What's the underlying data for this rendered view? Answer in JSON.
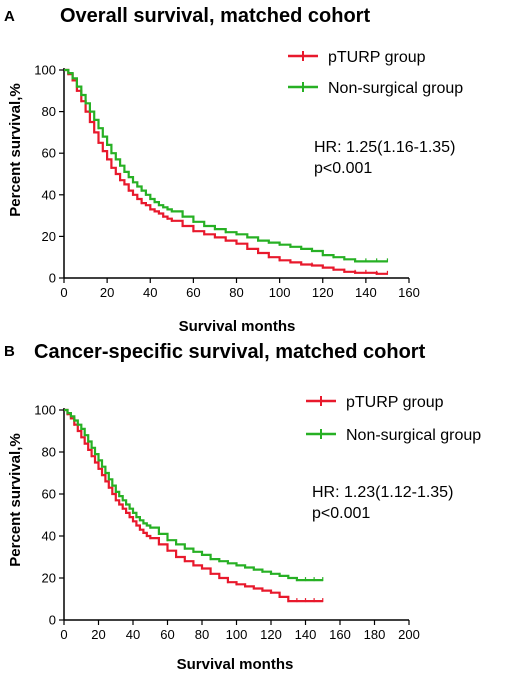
{
  "chart_data": [
    {
      "panel": "A",
      "type": "line",
      "title": "Overall survival, matched cohort",
      "xlabel": "Survival months",
      "ylabel": "Percent survival,%",
      "xlim": [
        0,
        160
      ],
      "ylim": [
        0,
        100
      ],
      "xticks": [
        0,
        20,
        40,
        60,
        80,
        100,
        120,
        140,
        160
      ],
      "yticks": [
        0,
        20,
        40,
        60,
        80,
        100
      ],
      "grid": false,
      "legend_position": "top-right",
      "series": [
        {
          "name": "pTURP group",
          "color": "#e8192c",
          "x": [
            0,
            2,
            4,
            6,
            8,
            10,
            12,
            14,
            16,
            18,
            20,
            22,
            24,
            26,
            28,
            30,
            32,
            34,
            36,
            38,
            40,
            42,
            44,
            46,
            48,
            50,
            55,
            60,
            65,
            70,
            75,
            80,
            85,
            90,
            95,
            100,
            105,
            110,
            115,
            120,
            125,
            130,
            135,
            140,
            145,
            150
          ],
          "y": [
            100,
            98,
            95,
            90,
            85,
            80,
            75,
            70,
            65,
            61,
            57,
            53,
            50,
            47,
            45,
            42,
            40,
            38,
            36,
            35,
            33,
            32,
            31,
            29.5,
            28.5,
            27.5,
            25,
            22.5,
            21,
            19.5,
            18,
            16.5,
            14,
            12,
            10,
            8.5,
            7.5,
            6.5,
            6,
            5,
            4,
            3,
            2.5,
            2.5,
            2,
            2
          ]
        },
        {
          "name": "Non-surgical group",
          "color": "#27b024",
          "x": [
            0,
            2,
            4,
            6,
            8,
            10,
            12,
            14,
            16,
            18,
            20,
            22,
            24,
            26,
            28,
            30,
            32,
            34,
            36,
            38,
            40,
            42,
            44,
            46,
            48,
            50,
            55,
            60,
            65,
            70,
            75,
            80,
            85,
            90,
            95,
            100,
            105,
            110,
            115,
            120,
            125,
            130,
            135,
            140,
            145,
            150
          ],
          "y": [
            100,
            98.5,
            96,
            92,
            88,
            84,
            80,
            76,
            72,
            68,
            64,
            60,
            57,
            54,
            51,
            48.5,
            46,
            44,
            42,
            40,
            38,
            36.5,
            35,
            34,
            33,
            32,
            29.5,
            27,
            25,
            23.5,
            22,
            21,
            19.5,
            18,
            17,
            16,
            15,
            14,
            13,
            11,
            10,
            9,
            8,
            8,
            8,
            8
          ]
        }
      ],
      "annotations": [
        "HR: 1.25(1.16-1.35)",
        "p<0.001"
      ]
    },
    {
      "panel": "B",
      "type": "line",
      "title": "Cancer-specific survival, matched cohort",
      "xlabel": "Survival months",
      "ylabel": "Percent survival,%",
      "xlim": [
        0,
        200
      ],
      "ylim": [
        0,
        100
      ],
      "xticks": [
        0,
        20,
        40,
        60,
        80,
        100,
        120,
        140,
        160,
        180,
        200
      ],
      "yticks": [
        0,
        20,
        40,
        60,
        80,
        100
      ],
      "grid": false,
      "legend_position": "top-right",
      "series": [
        {
          "name": "pTURP group",
          "color": "#e8192c",
          "x": [
            0,
            2,
            4,
            6,
            8,
            10,
            12,
            14,
            16,
            18,
            20,
            22,
            24,
            26,
            28,
            30,
            32,
            34,
            36,
            38,
            40,
            42,
            44,
            46,
            48,
            50,
            55,
            60,
            65,
            70,
            75,
            80,
            85,
            90,
            95,
            100,
            105,
            110,
            115,
            120,
            125,
            130,
            135,
            140,
            145,
            150
          ],
          "y": [
            100,
            98,
            96,
            93,
            90,
            87,
            84,
            81,
            78,
            75,
            72,
            69,
            66,
            63,
            60,
            57,
            55,
            53,
            51,
            49,
            47,
            45,
            43,
            41.5,
            40,
            39,
            36,
            33,
            30,
            28,
            26,
            24.5,
            22,
            20,
            18,
            17,
            16,
            15,
            14,
            13,
            11,
            9,
            9,
            9,
            9,
            9
          ]
        },
        {
          "name": "Non-surgical group",
          "color": "#27b024",
          "x": [
            0,
            2,
            4,
            6,
            8,
            10,
            12,
            14,
            16,
            18,
            20,
            22,
            24,
            26,
            28,
            30,
            32,
            34,
            36,
            38,
            40,
            42,
            44,
            46,
            48,
            50,
            55,
            60,
            65,
            70,
            75,
            80,
            85,
            90,
            95,
            100,
            105,
            110,
            115,
            120,
            125,
            130,
            135,
            140,
            145,
            150
          ],
          "y": [
            100,
            98.5,
            97,
            95,
            93,
            91,
            88,
            85,
            82,
            79,
            76,
            73,
            70,
            67,
            64,
            61,
            59,
            57,
            55,
            53,
            51,
            49,
            47.5,
            46,
            45,
            44,
            41,
            38,
            36,
            34,
            32.5,
            31,
            29,
            28,
            27,
            26,
            25,
            24,
            23,
            22,
            21,
            20,
            19,
            19,
            19,
            19
          ]
        }
      ],
      "annotations": [
        "HR: 1.23(1.12-1.35)",
        "p<0.001"
      ]
    }
  ]
}
